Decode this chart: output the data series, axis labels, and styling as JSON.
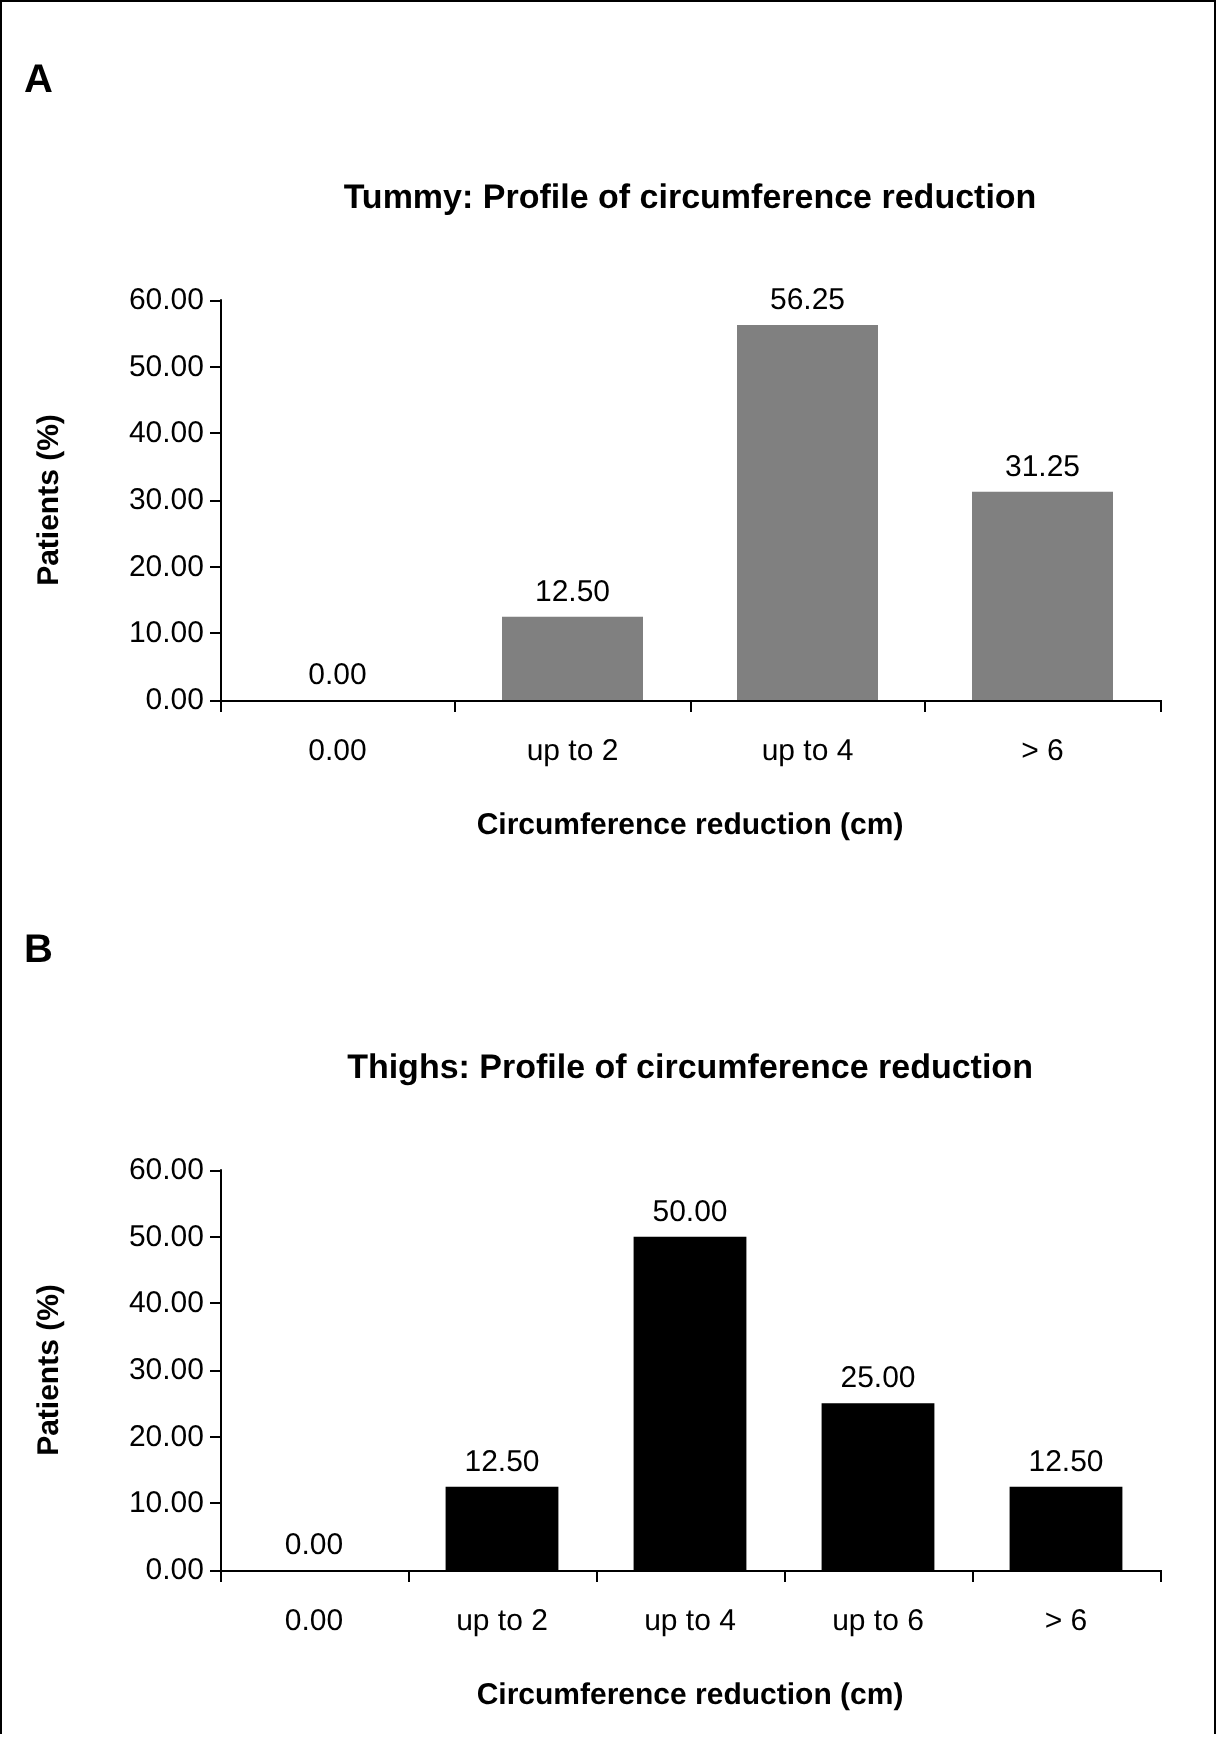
{
  "chart_data": [
    {
      "type": "bar",
      "title": "Tummy: Profile of circumference reduction",
      "xlabel": "Circumference reduction (cm)",
      "ylabel": "Patients (%)",
      "annotations": [
        "A"
      ],
      "categories": [
        "0.00",
        "up to 2",
        "up to 4",
        "> 6"
      ],
      "values": [
        0,
        12.5,
        56.25,
        31.25
      ],
      "color": "#808080",
      "value_labels": [
        "0.00",
        "12.50",
        "56.25",
        "31.25"
      ],
      "ylim": [
        0,
        60
      ],
      "yticks": [
        {
          "value": 0,
          "label": "0.00"
        },
        {
          "value": 10,
          "label": "10.00"
        },
        {
          "value": 20,
          "label": "20.00"
        },
        {
          "value": 30,
          "label": "30.00"
        },
        {
          "value": 40,
          "label": "40.00"
        },
        {
          "value": 50,
          "label": "50.00"
        },
        {
          "value": 60,
          "label": "60.00"
        }
      ],
      "grid": false
    },
    {
      "type": "bar",
      "title": "Thighs: Profile of circumference reduction",
      "xlabel": "Circumference reduction (cm)",
      "ylabel": "Patients (%)",
      "annotations": [
        "B"
      ],
      "categories": [
        "0.00",
        "up to 2",
        "up to 4",
        "up to 6",
        "> 6"
      ],
      "values": [
        0,
        12.5,
        50,
        25,
        12.5
      ],
      "color": "#000000",
      "value_labels": [
        "0.00",
        "12.50",
        "50.00",
        "25.00",
        "12.50"
      ],
      "ylim": [
        0,
        60
      ],
      "yticks": [
        {
          "value": 0,
          "label": "0.00"
        },
        {
          "value": 10,
          "label": "10.00"
        },
        {
          "value": 20,
          "label": "20.00"
        },
        {
          "value": 30,
          "label": "30.00"
        },
        {
          "value": 40,
          "label": "40.00"
        },
        {
          "value": 50,
          "label": "50.00"
        },
        {
          "value": 60,
          "label": "60.00"
        }
      ],
      "grid": false
    }
  ]
}
